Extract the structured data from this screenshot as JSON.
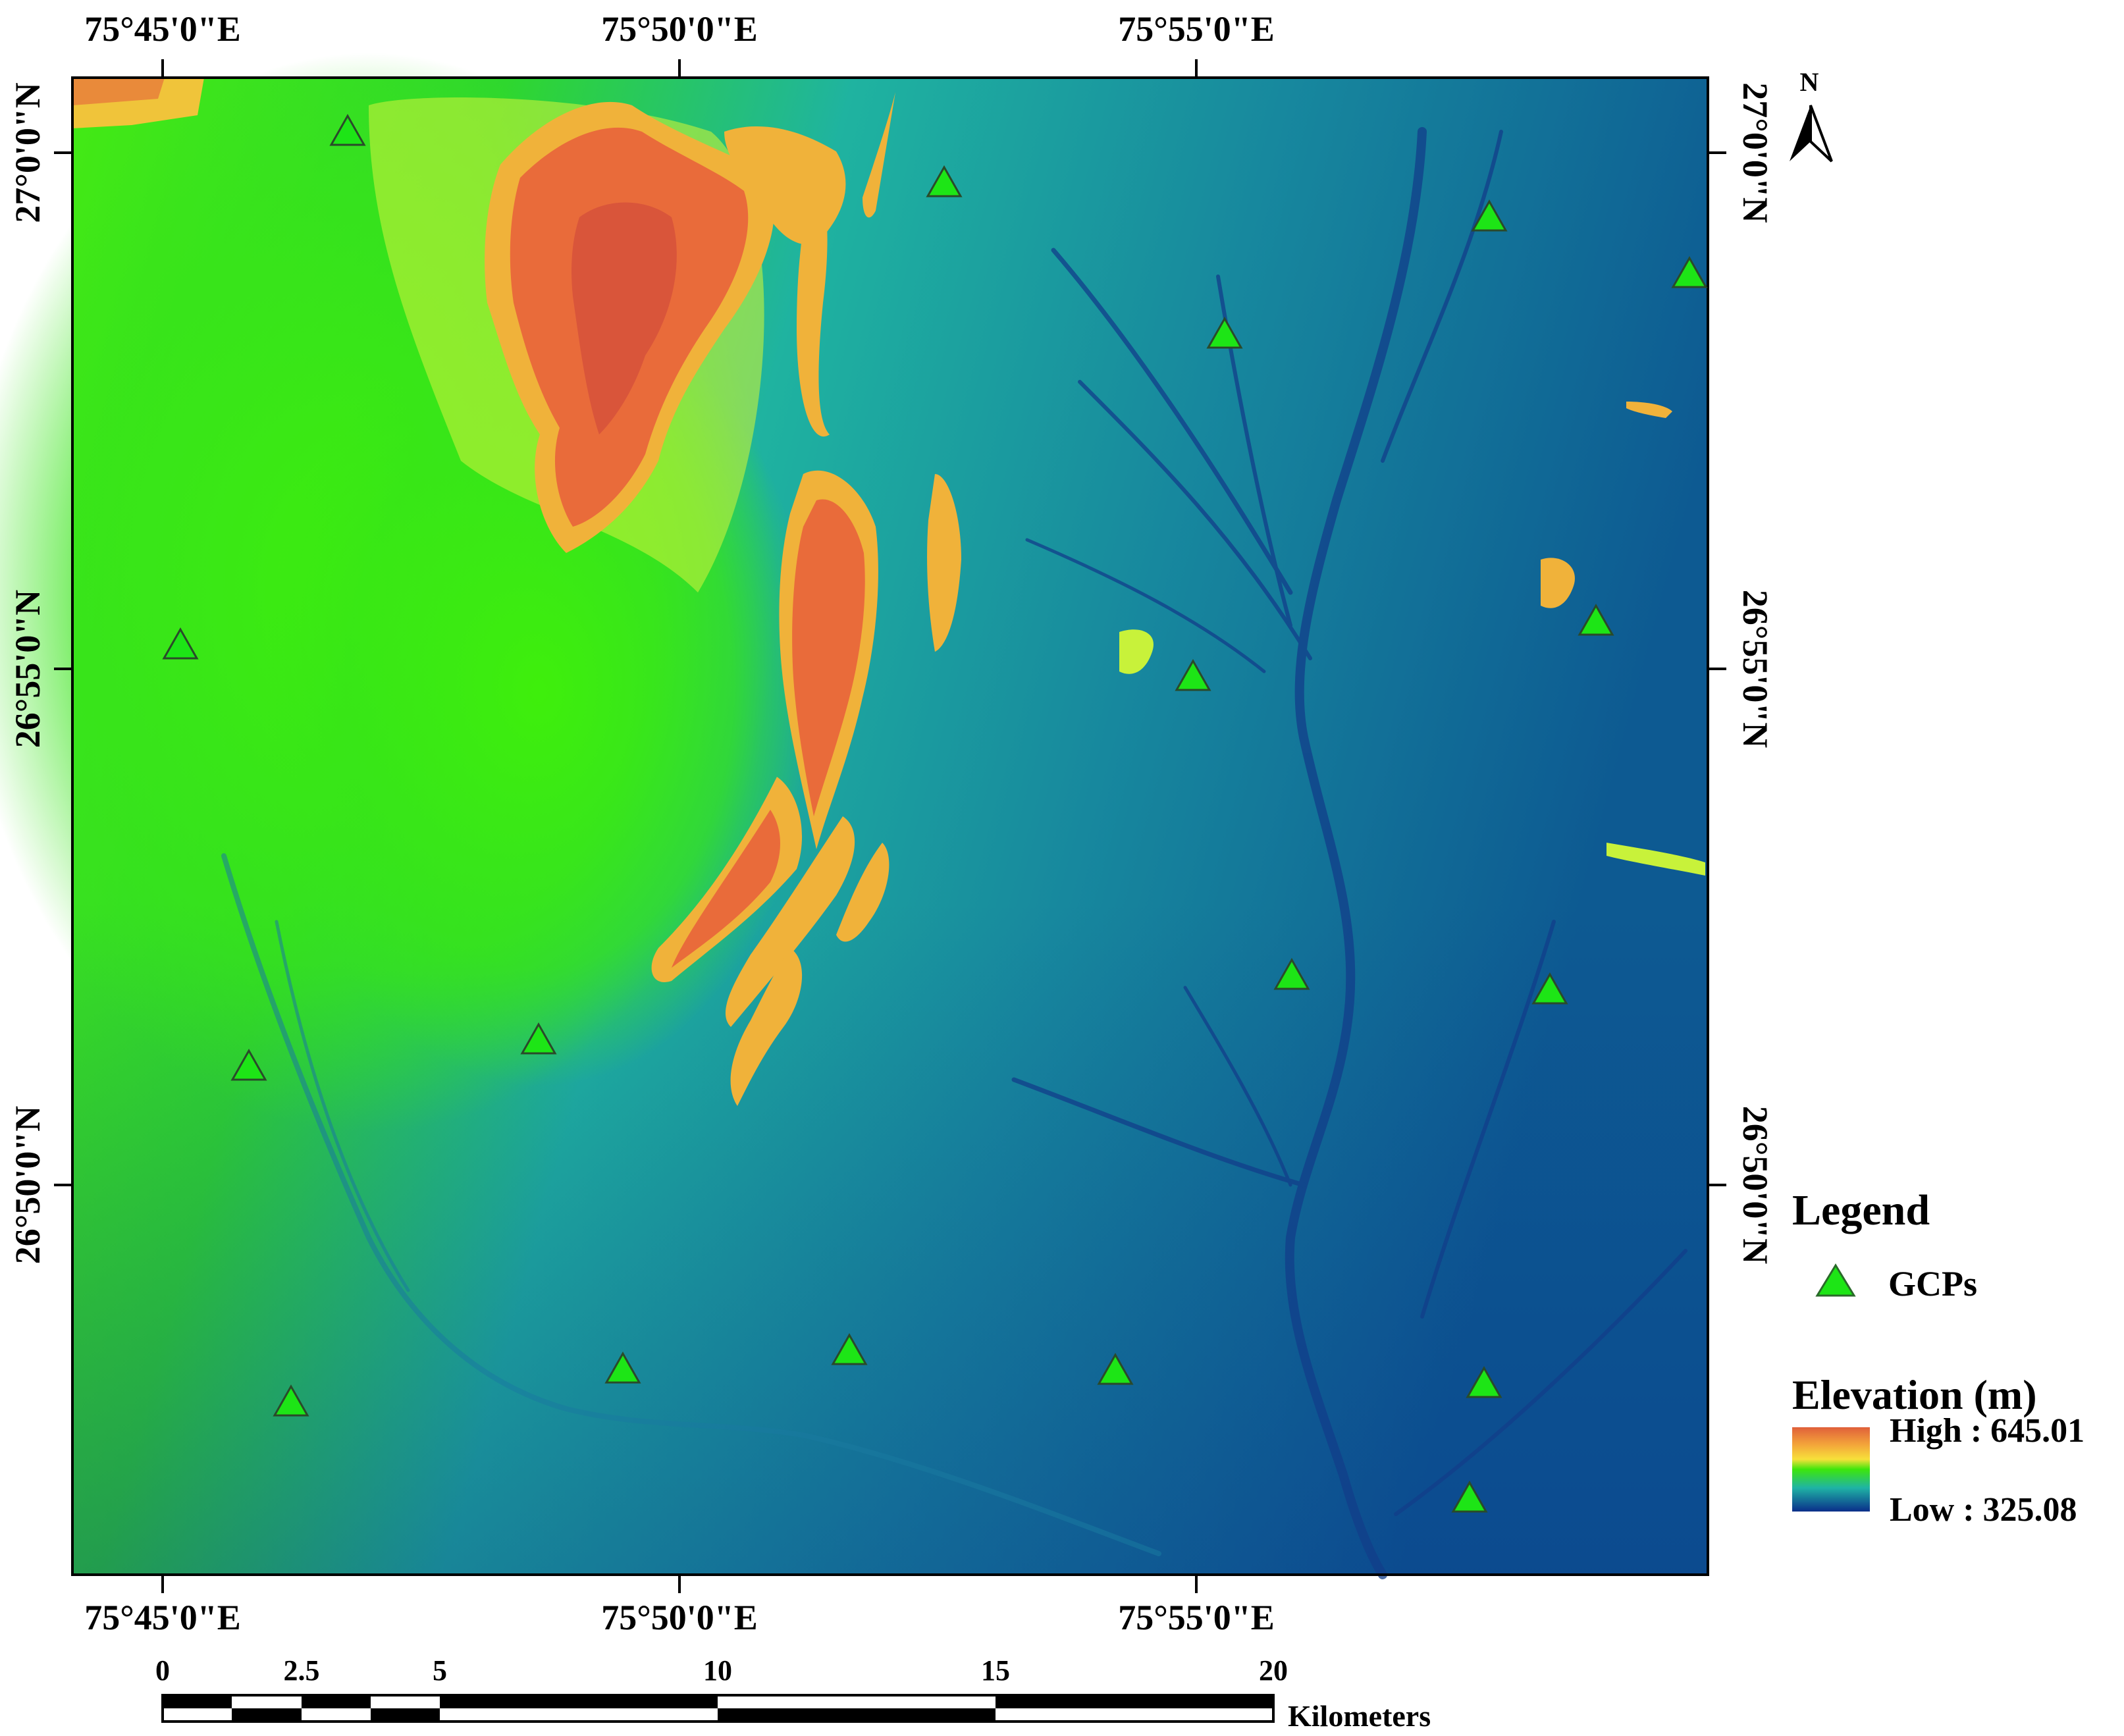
{
  "map": {
    "top_lon_labels": [
      "75°45'0\"E",
      "75°50'0\"E",
      "75°55'0\"E"
    ],
    "bottom_lon_labels": [
      "75°45'0\"E",
      "75°50'0\"E",
      "75°55'0\"E"
    ],
    "left_lat_labels": [
      "27°0'0\"N",
      "26°55'0\"N",
      "26°50'0\"N"
    ],
    "right_lat_labels": [
      "27°0'0\"N",
      "26°55'0\"N",
      "26°50'0\"N"
    ],
    "north_arrow_label": "N",
    "gcp_count": 20
  },
  "legend": {
    "title": "Legend",
    "gcp_label": "GCPs",
    "elevation_title": "Elevation (m)",
    "high_label": "High : 645.01",
    "low_label": "Low : 325.08",
    "colors": {
      "high": "#e0603a",
      "mid_high": "#f7d33a",
      "mid": "#3de60b",
      "mid_low": "#1fb3a5",
      "low": "#0a2e8a"
    },
    "gcp_color": "#1de516"
  },
  "scale_bar": {
    "ticks": [
      "0",
      "2.5",
      "5",
      "10",
      "15",
      "20"
    ],
    "unit": "Kilometers"
  }
}
